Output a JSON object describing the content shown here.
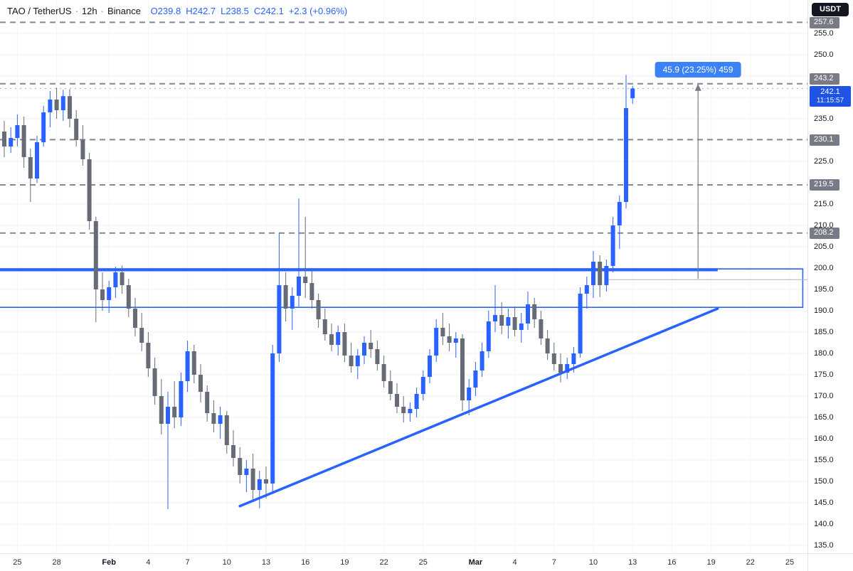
{
  "header": {
    "symbol": "TAO / TetherUS",
    "separator": "·",
    "interval": "12h",
    "exchange": "Binance",
    "ohlc": {
      "open": "O239.8",
      "high": "H242.7",
      "low": "L238.5",
      "close": "C242.1",
      "change": "+2.3 (+0.96%)"
    }
  },
  "price_scale": {
    "currency": "USDT"
  },
  "chart_data": {
    "type": "candlestick",
    "symbol": "TAO/USDT",
    "exchange": "Binance",
    "interval": "12h",
    "current_price": 242.1,
    "countdown": "11:15:57",
    "y_axis": {
      "range": [
        131.5,
        262.8
      ],
      "grid_step": 5,
      "visible_ticks": [
        "255.0",
        "250.0",
        "235.0",
        "225.0",
        "215.0",
        "210.0",
        "205.0",
        "200.0",
        "195.0",
        "190.0",
        "185.0",
        "180.0",
        "175.0",
        "170.0",
        "165.0",
        "160.0",
        "155.0",
        "150.0",
        "145.0",
        "140.0",
        "135.0"
      ]
    },
    "x_axis": {
      "labels": [
        {
          "t": "25",
          "i": 2
        },
        {
          "t": "28",
          "i": 8
        },
        {
          "t": "Feb",
          "i": 16,
          "major": true
        },
        {
          "t": "4",
          "i": 22
        },
        {
          "t": "7",
          "i": 28
        },
        {
          "t": "10",
          "i": 34
        },
        {
          "t": "13",
          "i": 40
        },
        {
          "t": "16",
          "i": 46
        },
        {
          "t": "19",
          "i": 52
        },
        {
          "t": "22",
          "i": 58
        },
        {
          "t": "25",
          "i": 64
        },
        {
          "t": "Mar",
          "i": 72,
          "major": true
        },
        {
          "t": "4",
          "i": 78
        },
        {
          "t": "7",
          "i": 84
        },
        {
          "t": "10",
          "i": 90
        },
        {
          "t": "13",
          "i": 96
        },
        {
          "t": "16",
          "i": 102
        },
        {
          "t": "19",
          "i": 108
        },
        {
          "t": "22",
          "i": 114
        },
        {
          "t": "25",
          "i": 120
        }
      ]
    },
    "levels": [
      257.6,
      243.2,
      230.1,
      219.5,
      208.2
    ],
    "candles": [
      [
        232,
        234.5,
        226,
        228.5
      ],
      [
        228.5,
        233,
        227,
        230.5
      ],
      [
        230.5,
        236,
        228.5,
        233.5
      ],
      [
        233.5,
        235.5,
        223.5,
        226
      ],
      [
        226,
        228,
        215.5,
        221
      ],
      [
        221,
        231,
        220,
        229.5
      ],
      [
        229.5,
        238,
        228.5,
        236.5
      ],
      [
        236.5,
        241.5,
        233,
        239.5
      ],
      [
        239.5,
        242.3,
        235,
        237
      ],
      [
        237,
        241.8,
        234.5,
        240.3
      ],
      [
        240.3,
        241.9,
        233,
        235
      ],
      [
        235,
        237,
        228.5,
        230
      ],
      [
        230,
        233.5,
        224,
        225.5
      ],
      [
        225.5,
        227,
        209,
        211
      ],
      [
        211,
        212,
        187.3,
        195
      ],
      [
        195,
        199,
        190,
        192.5
      ],
      [
        192.5,
        197,
        189.5,
        195.5
      ],
      [
        195.5,
        200.3,
        193,
        199
      ],
      [
        199,
        200.6,
        194,
        196
      ],
      [
        196,
        197.5,
        188.5,
        190.5
      ],
      [
        190.5,
        193,
        184,
        186
      ],
      [
        186,
        189.5,
        180.5,
        182.5
      ],
      [
        182.5,
        185,
        174.5,
        176.5
      ],
      [
        176.5,
        179,
        168,
        170
      ],
      [
        170,
        174,
        161,
        163.5
      ],
      [
        163.5,
        171,
        143.5,
        167.5
      ],
      [
        167.5,
        173.5,
        162.5,
        165
      ],
      [
        165,
        175.5,
        163,
        173.5
      ],
      [
        173.5,
        183,
        171,
        180.5
      ],
      [
        180.5,
        182,
        173,
        175
      ],
      [
        175,
        177.5,
        168.5,
        171
      ],
      [
        171,
        172.5,
        164,
        166
      ],
      [
        166,
        169,
        161.5,
        163.5
      ],
      [
        163.5,
        167.5,
        160,
        165.5
      ],
      [
        165.5,
        166.5,
        156.5,
        158.5
      ],
      [
        158.5,
        162,
        153.5,
        155.5
      ],
      [
        155.5,
        158,
        149.5,
        151.5
      ],
      [
        151.5,
        155,
        147.5,
        153
      ],
      [
        153,
        156.5,
        145.5,
        148
      ],
      [
        148,
        152.5,
        143.7,
        150.5
      ],
      [
        150.5,
        153.5,
        146,
        149.5
      ],
      [
        149.5,
        182,
        147.5,
        180
      ],
      [
        180,
        208.3,
        178,
        196
      ],
      [
        196,
        199,
        187.5,
        190.5
      ],
      [
        190.5,
        195.5,
        185.5,
        193.5
      ],
      [
        193.5,
        216.3,
        191,
        198
      ],
      [
        198,
        212,
        193,
        196.5
      ],
      [
        196.5,
        199.5,
        190.5,
        192.5
      ],
      [
        192.5,
        194,
        186,
        188
      ],
      [
        188,
        190.5,
        183,
        184.5
      ],
      [
        184.5,
        187,
        180.5,
        182
      ],
      [
        182,
        186.5,
        179.5,
        185
      ],
      [
        185,
        187,
        178,
        179.5
      ],
      [
        179.5,
        182.5,
        175.5,
        177
      ],
      [
        177,
        181,
        174,
        179.5
      ],
      [
        179.5,
        184,
        177.5,
        182.5
      ],
      [
        182.5,
        185.5,
        179,
        181
      ],
      [
        181,
        183,
        176,
        177.5
      ],
      [
        177.5,
        179.5,
        172,
        173.5
      ],
      [
        173.5,
        176,
        169,
        170.5
      ],
      [
        170.5,
        173,
        166,
        167.5
      ],
      [
        167.5,
        170,
        163.8,
        166
      ],
      [
        166,
        168.5,
        164,
        167
      ],
      [
        167,
        172,
        165,
        170.5
      ],
      [
        170.5,
        176,
        169,
        174.5
      ],
      [
        174.5,
        181,
        173,
        179.5
      ],
      [
        179.5,
        188,
        178,
        186
      ],
      [
        186,
        189.5,
        182,
        184
      ],
      [
        184,
        187,
        180.5,
        182.5
      ],
      [
        182.5,
        185,
        179,
        183.5
      ],
      [
        183.5,
        184.5,
        166.5,
        169
      ],
      [
        169,
        174,
        165.5,
        172
      ],
      [
        172,
        178,
        170,
        176
      ],
      [
        176,
        182.5,
        174.5,
        180.5
      ],
      [
        180.5,
        190,
        179,
        187.5
      ],
      [
        187.5,
        196,
        185,
        189
      ],
      [
        189,
        192,
        184.5,
        186.5
      ],
      [
        186.5,
        190.5,
        183.5,
        188.5
      ],
      [
        188.5,
        191,
        184,
        185.5
      ],
      [
        185.5,
        189.5,
        182.5,
        187
      ],
      [
        187,
        194.5,
        185.5,
        191.5
      ],
      [
        191.5,
        193,
        186,
        188
      ],
      [
        188,
        190,
        182,
        183.5
      ],
      [
        183.5,
        185.5,
        178.5,
        180
      ],
      [
        180,
        182.5,
        176,
        177.5
      ],
      [
        177.5,
        180,
        173.2,
        175.5
      ],
      [
        175.5,
        179,
        174,
        177.5
      ],
      [
        177.5,
        181.5,
        175.5,
        180
      ],
      [
        180,
        195.5,
        179,
        194
      ],
      [
        194,
        198,
        190.5,
        196
      ],
      [
        196,
        204,
        193,
        201.5
      ],
      [
        201.5,
        203,
        193.2,
        196
      ],
      [
        196,
        202,
        194.5,
        200.5
      ],
      [
        200.5,
        212,
        199,
        210
      ],
      [
        210,
        217,
        204.5,
        215.5
      ],
      [
        215.5,
        245.3,
        214,
        237.5
      ],
      [
        239.8,
        242.7,
        238.5,
        242.1
      ]
    ],
    "drawings": {
      "box": {
        "price_top": 199.8,
        "price_bottom": 190.8,
        "from_index": -1,
        "to_index": 122
      },
      "resistance_ray": {
        "price": 199.6,
        "from_index": -1,
        "to_index": 109
      },
      "trendline": {
        "from_index": 36,
        "from_price": 144.2,
        "to_index": 109,
        "to_price": 190.5
      },
      "baseline": {
        "price": 197.3,
        "from_index": 92
      },
      "measure": {
        "index": 106,
        "from_price": 197.3,
        "to_price": 243.2,
        "label": "45.9 (23.25%) 459"
      }
    },
    "colors": {
      "up_candle": "#2962ff",
      "down_candle": "#676b76",
      "level_line": "#787b86",
      "level_badge_bg": "#787b86",
      "drawing_blue": "#2962ff",
      "measure_label_bg": "#3b82f6",
      "current_badge_bg": "#1e53e5",
      "baseline_gray": "#b0b3bc"
    }
  }
}
